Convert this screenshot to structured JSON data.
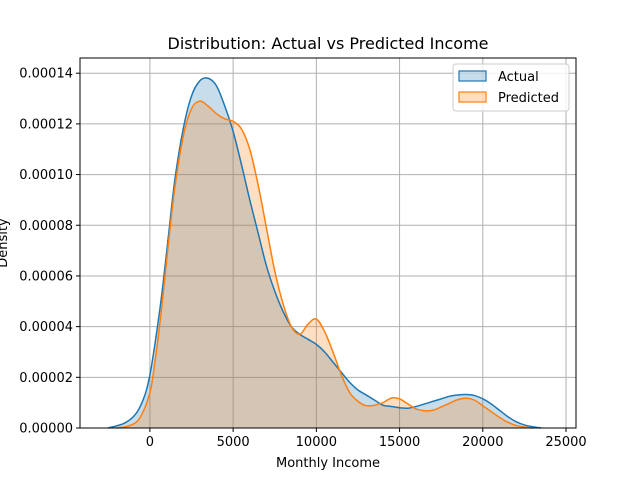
{
  "chart_data": {
    "type": "area",
    "title": "Distribution: Actual vs Predicted Income",
    "xlabel": "Monthly Income",
    "ylabel": "Density",
    "xlim": [
      -4200,
      25600
    ],
    "ylim": [
      0,
      0.000146
    ],
    "xticks": [
      0,
      5000,
      10000,
      15000,
      20000,
      25000
    ],
    "yticks": [
      0,
      2e-05,
      4e-05,
      6e-05,
      8e-05,
      0.0001,
      0.00012,
      0.00014
    ],
    "xtick_labels": [
      "0",
      "5000",
      "10000",
      "15000",
      "20000",
      "25000"
    ],
    "ytick_labels": [
      "0.00000",
      "0.00002",
      "0.00004",
      "0.00006",
      "0.00008",
      "0.00010",
      "0.00012",
      "0.00014"
    ],
    "grid": true,
    "legend_position": "top-right",
    "series": [
      {
        "name": "Actual",
        "color": "#1f77b4",
        "points": [
          [
            -2500,
            0
          ],
          [
            -1500,
            2e-06
          ],
          [
            -800,
            6e-06
          ],
          [
            -300,
            1.3e-05
          ],
          [
            0,
            2.1e-05
          ],
          [
            300,
            3.3e-05
          ],
          [
            700,
            5.2e-05
          ],
          [
            1100,
            7.5e-05
          ],
          [
            1500,
            9.8e-05
          ],
          [
            2000,
            0.000118
          ],
          [
            2500,
            0.000131
          ],
          [
            3000,
            0.000137
          ],
          [
            3500,
            0.000138
          ],
          [
            4000,
            0.000135
          ],
          [
            4500,
            0.000127
          ],
          [
            5000,
            0.000117
          ],
          [
            5500,
            0.000104
          ],
          [
            6000,
            9e-05
          ],
          [
            6500,
            7.7e-05
          ],
          [
            7000,
            6.4e-05
          ],
          [
            7500,
            5.4e-05
          ],
          [
            8000,
            4.6e-05
          ],
          [
            8500,
            4e-05
          ],
          [
            9000,
            3.7e-05
          ],
          [
            9500,
            3.5e-05
          ],
          [
            10000,
            3.3e-05
          ],
          [
            10500,
            3e-05
          ],
          [
            11000,
            2.6e-05
          ],
          [
            11500,
            2.2e-05
          ],
          [
            12000,
            1.8e-05
          ],
          [
            12500,
            1.5e-05
          ],
          [
            13000,
            1.3e-05
          ],
          [
            13500,
            1.1e-05
          ],
          [
            14000,
            9e-06
          ],
          [
            14500,
            8.5e-06
          ],
          [
            15000,
            8e-06
          ],
          [
            15500,
            7.8e-06
          ],
          [
            16000,
            8.5e-06
          ],
          [
            16500,
            9.5e-06
          ],
          [
            17000,
            1.05e-05
          ],
          [
            17500,
            1.15e-05
          ],
          [
            18000,
            1.25e-05
          ],
          [
            18500,
            1.3e-05
          ],
          [
            19000,
            1.32e-05
          ],
          [
            19500,
            1.28e-05
          ],
          [
            20000,
            1.15e-05
          ],
          [
            20500,
            9.5e-06
          ],
          [
            21000,
            7e-06
          ],
          [
            21500,
            4.5e-06
          ],
          [
            22000,
            2.5e-06
          ],
          [
            22500,
            1.2e-06
          ],
          [
            23000,
            5e-07
          ],
          [
            23500,
            0
          ]
        ]
      },
      {
        "name": "Predicted",
        "color": "#ff7f0e",
        "points": [
          [
            -2000,
            0
          ],
          [
            -1200,
            1e-06
          ],
          [
            -600,
            4e-06
          ],
          [
            0,
            1.4e-05
          ],
          [
            300,
            2.6e-05
          ],
          [
            700,
            4.7e-05
          ],
          [
            1100,
            7.2e-05
          ],
          [
            1500,
            9.5e-05
          ],
          [
            2000,
            0.000115
          ],
          [
            2500,
            0.000126
          ],
          [
            3000,
            0.000129
          ],
          [
            3500,
            0.000127
          ],
          [
            4000,
            0.000124
          ],
          [
            4500,
            0.000122
          ],
          [
            5000,
            0.000121
          ],
          [
            5500,
            0.000118
          ],
          [
            6000,
            0.00011
          ],
          [
            6500,
            9.6e-05
          ],
          [
            7000,
            7.9e-05
          ],
          [
            7500,
            6.2e-05
          ],
          [
            8000,
            4.9e-05
          ],
          [
            8500,
            4e-05
          ],
          [
            9000,
            3.7e-05
          ],
          [
            9500,
            4.1e-05
          ],
          [
            10000,
            4.3e-05
          ],
          [
            10500,
            3.8e-05
          ],
          [
            11000,
            3e-05
          ],
          [
            11500,
            2.1e-05
          ],
          [
            12000,
            1.4e-05
          ],
          [
            12500,
            1.05e-05
          ],
          [
            13000,
            8.8e-06
          ],
          [
            13500,
            9e-06
          ],
          [
            14000,
            1e-05
          ],
          [
            14500,
            1.18e-05
          ],
          [
            15000,
            1.15e-05
          ],
          [
            15500,
            9.5e-06
          ],
          [
            16000,
            7.5e-06
          ],
          [
            16500,
            6.8e-06
          ],
          [
            17000,
            7e-06
          ],
          [
            17500,
            8.3e-06
          ],
          [
            18000,
            9.8e-06
          ],
          [
            18500,
            1.12e-05
          ],
          [
            19000,
            1.18e-05
          ],
          [
            19500,
            1.1e-05
          ],
          [
            20000,
            8.8e-06
          ],
          [
            20500,
            6.5e-06
          ],
          [
            21000,
            4.2e-06
          ],
          [
            21500,
            2.3e-06
          ],
          [
            22000,
            1e-06
          ],
          [
            22500,
            4e-07
          ],
          [
            23000,
            0
          ]
        ]
      }
    ]
  }
}
